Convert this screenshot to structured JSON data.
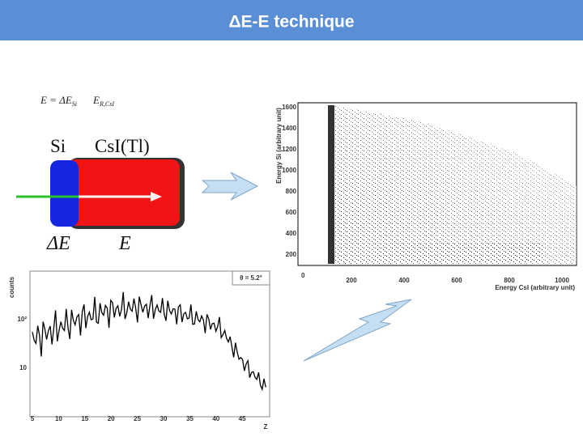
{
  "header": {
    "title": "ΔE-E technique"
  },
  "formula": {
    "lhs": "E = ΔE",
    "lhs_sub": "Si",
    "rhs": "E",
    "rhs_sub": "R,CsI"
  },
  "detector": {
    "left_label": "Si",
    "right_label": "CsI(Tl)",
    "left_energy": "ΔE",
    "right_energy": "E"
  },
  "scatter_plot": {
    "y_label": "Energy Si (arbitrary unit)",
    "x_label": "Energy CsI (arbitrary unit)",
    "yticks": [
      0,
      200,
      400,
      600,
      800,
      1000,
      1200,
      1400,
      1600
    ],
    "xticks": [
      200,
      400,
      600,
      800,
      1000
    ]
  },
  "histogram": {
    "y_label": "counts",
    "yticks": [
      "10",
      "10²"
    ],
    "x_label": "Z",
    "xticks": [
      5,
      10,
      15,
      20,
      25,
      30,
      35,
      40,
      45
    ],
    "legend": "θ = 5.2°"
  }
}
